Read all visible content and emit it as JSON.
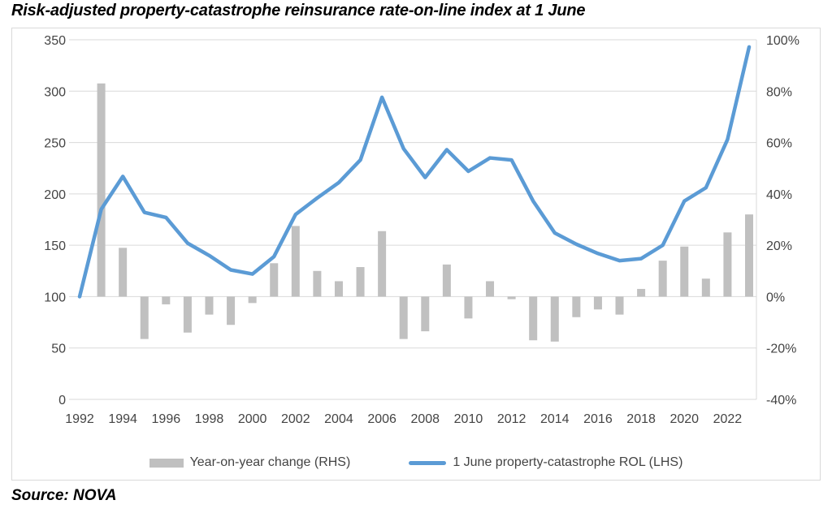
{
  "title": "Risk-adjusted property-catastrophe reinsurance rate-on-line index at 1 June",
  "source": "Source: NOVA",
  "colors": {
    "line": "#5b9bd5",
    "bar": "#c0c0c0",
    "grid": "#d9d9d9",
    "axis_line": "#d9d9d9",
    "border": "#d9d9d9",
    "axis_text": "#444444"
  },
  "legend": {
    "bar_label": "Year-on-year change (RHS)",
    "line_label": "1 June property-catastrophe ROL (LHS)"
  },
  "chart_data": {
    "type": "combo",
    "x": [
      1992,
      1993,
      1994,
      1995,
      1996,
      1997,
      1998,
      1999,
      2000,
      2001,
      2002,
      2003,
      2004,
      2005,
      2006,
      2007,
      2008,
      2009,
      2010,
      2011,
      2012,
      2013,
      2014,
      2015,
      2016,
      2017,
      2018,
      2019,
      2020,
      2021,
      2022,
      2023
    ],
    "series": [
      {
        "name": "Year-on-year change (RHS)",
        "type": "bar",
        "axis": "right",
        "unit": "%",
        "values": [
          null,
          83,
          19,
          -16.5,
          -3,
          -14,
          -7,
          -11,
          -2.5,
          13,
          27.5,
          10,
          6,
          11.5,
          25.5,
          -16.5,
          -13.5,
          12.5,
          -8.5,
          6,
          -1,
          -17,
          -17.5,
          -8,
          -5,
          -7,
          3,
          14,
          19.5,
          7,
          25,
          32
        ]
      },
      {
        "name": "1 June property-catastrophe ROL (LHS)",
        "type": "line",
        "axis": "left",
        "values": [
          100,
          185,
          217,
          182,
          177,
          152,
          140,
          126,
          122,
          139,
          180,
          196,
          211,
          233,
          294,
          244,
          216,
          243,
          222,
          235,
          233,
          193,
          162,
          151,
          142,
          135,
          137,
          150,
          193,
          206,
          253,
          343
        ]
      }
    ],
    "title": "Risk-adjusted property-catastrophe reinsurance rate-on-line index at 1 June",
    "left_axis": {
      "min": 0,
      "max": 350,
      "ticks": [
        350,
        300,
        250,
        200,
        150,
        100,
        50,
        0
      ]
    },
    "right_axis": {
      "min": -40,
      "max": 100,
      "tick_labels": [
        "100%",
        "80%",
        "60%",
        "40%",
        "20%",
        "0%",
        "-20%",
        "-40%"
      ]
    },
    "x_tick_labels": [
      1992,
      1994,
      1996,
      1998,
      2000,
      2002,
      2004,
      2006,
      2008,
      2010,
      2012,
      2014,
      2016,
      2018,
      2020,
      2022
    ],
    "grid": true,
    "bar_baseline_left_value": 100,
    "legend_position": "bottom"
  }
}
